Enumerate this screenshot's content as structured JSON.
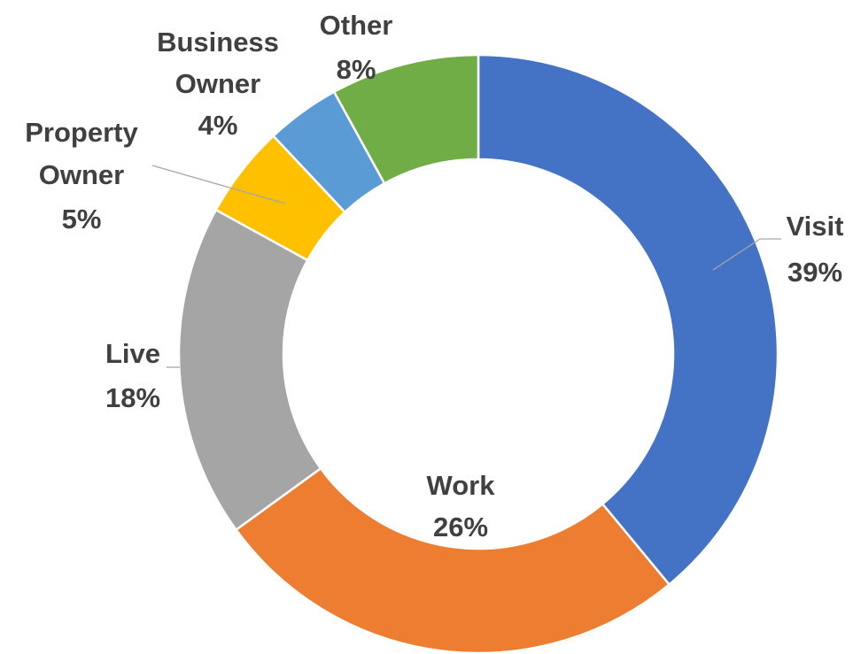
{
  "chart_data": {
    "type": "pie",
    "variant": "donut",
    "title": "",
    "slices": [
      {
        "label": "Visit",
        "value": 39,
        "display": "39%",
        "color": "#4472C4"
      },
      {
        "label": "Work",
        "value": 26,
        "display": "26%",
        "color": "#ED7D31"
      },
      {
        "label": "Live",
        "value": 18,
        "display": "18%",
        "color": "#A5A5A5"
      },
      {
        "label": "Property Owner",
        "label_lines": [
          "Property",
          "Owner"
        ],
        "value": 5,
        "display": "5%",
        "color": "#FFC000"
      },
      {
        "label": "Business Owner",
        "label_lines": [
          "Business",
          "Owner"
        ],
        "value": 4,
        "display": "4%",
        "color": "#5B9BD5"
      },
      {
        "label": "Other",
        "value": 8,
        "display": "8%",
        "color": "#70AD47"
      }
    ],
    "legend": "none",
    "data_labels": "category and percentage"
  }
}
